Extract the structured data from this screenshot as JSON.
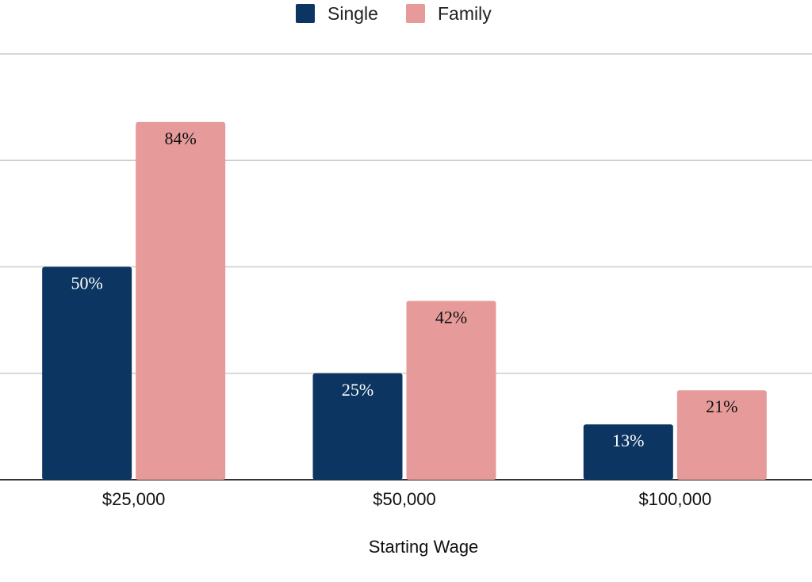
{
  "chart_data": {
    "type": "bar",
    "title": "",
    "xlabel": "Starting Wage",
    "ylabel": "",
    "categories": [
      "$25,000",
      "$50,000",
      "$100,000"
    ],
    "series": [
      {
        "name": "Single",
        "values": [
          50,
          25,
          13
        ],
        "labels": [
          "50%",
          "25%",
          "13%"
        ],
        "color": "#0c3661",
        "label_color": "#ffffff"
      },
      {
        "name": "Family",
        "values": [
          84,
          42,
          21
        ],
        "labels": [
          "84%",
          "42%",
          "21%"
        ],
        "color": "#e79a9a",
        "label_color": "#111111"
      }
    ],
    "ylim": [
      0,
      100
    ],
    "gridlines": [
      0,
      25,
      50,
      75,
      100
    ],
    "grid": true,
    "y_tick_labels_visible": false,
    "legend": "top-center",
    "colors": {
      "grid": "#cccccc",
      "baseline": "#333333"
    }
  }
}
